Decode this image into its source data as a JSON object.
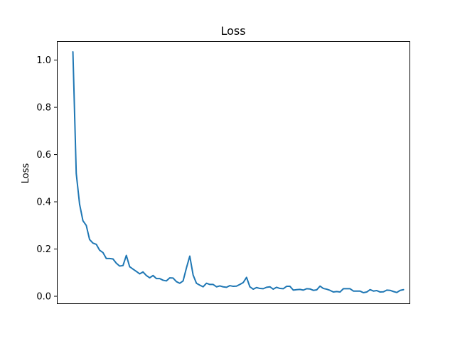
{
  "chart_data": {
    "type": "line",
    "title": "Loss",
    "xlabel": "",
    "ylabel": "Loss",
    "ylim": [
      -0.03,
      1.08
    ],
    "xlim": [
      -4.8,
      100.8
    ],
    "yticks": [
      0.0,
      0.2,
      0.4,
      0.6,
      0.8,
      1.0
    ],
    "ytick_labels": [
      "0.0",
      "0.2",
      "0.4",
      "0.6",
      "0.8",
      "1.0"
    ],
    "xticks_visible": false,
    "grid": false,
    "series": [
      {
        "name": "Loss",
        "color": "#1f77b4",
        "values": [
          1.035,
          0.52,
          0.39,
          0.32,
          0.3,
          0.24,
          0.225,
          0.22,
          0.195,
          0.185,
          0.16,
          0.16,
          0.158,
          0.14,
          0.128,
          0.13,
          0.173,
          0.125,
          0.115,
          0.105,
          0.095,
          0.103,
          0.088,
          0.078,
          0.088,
          0.075,
          0.075,
          0.068,
          0.065,
          0.078,
          0.077,
          0.062,
          0.055,
          0.065,
          0.12,
          0.17,
          0.09,
          0.055,
          0.047,
          0.04,
          0.055,
          0.05,
          0.05,
          0.04,
          0.044,
          0.04,
          0.038,
          0.045,
          0.042,
          0.043,
          0.05,
          0.058,
          0.08,
          0.04,
          0.03,
          0.037,
          0.033,
          0.032,
          0.038,
          0.04,
          0.03,
          0.038,
          0.033,
          0.032,
          0.042,
          0.042,
          0.026,
          0.028,
          0.029,
          0.026,
          0.032,
          0.031,
          0.025,
          0.027,
          0.043,
          0.033,
          0.03,
          0.025,
          0.018,
          0.02,
          0.018,
          0.032,
          0.032,
          0.032,
          0.022,
          0.022,
          0.022,
          0.015,
          0.018,
          0.028,
          0.022,
          0.024,
          0.018,
          0.019,
          0.026,
          0.025,
          0.02,
          0.016,
          0.025,
          0.028
        ]
      }
    ]
  }
}
